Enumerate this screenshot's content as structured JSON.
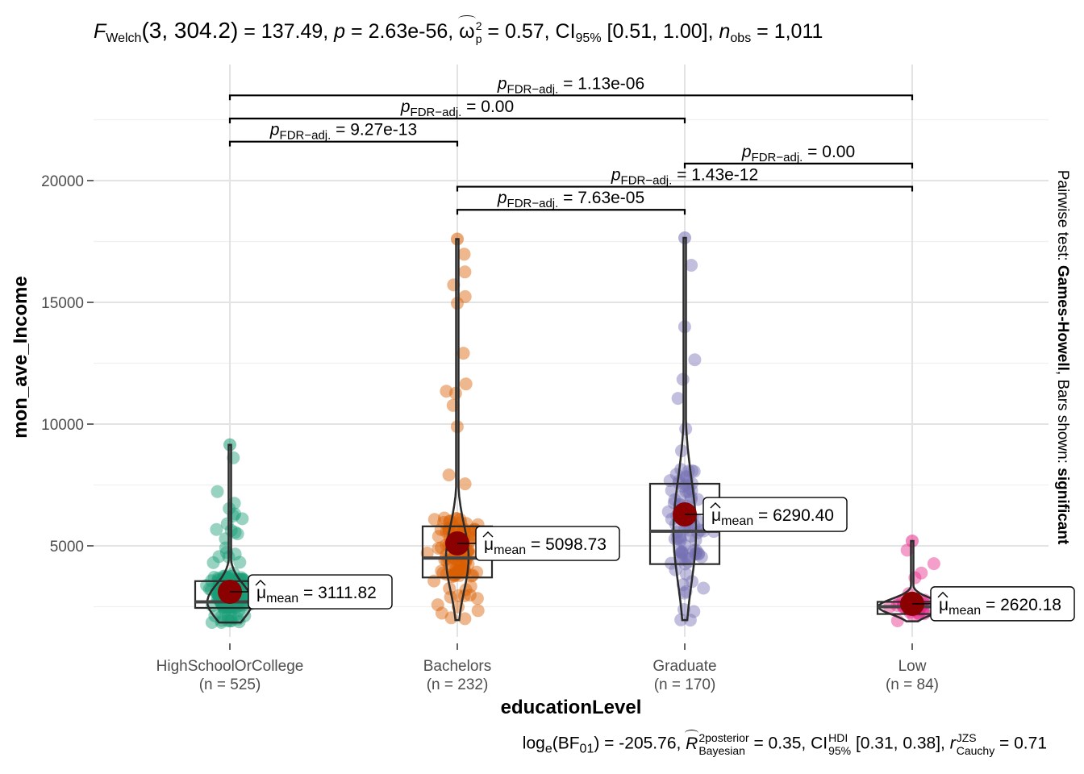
{
  "subtitle": {
    "stat_symbol": "F",
    "stat_sub": "Welch",
    "df": "(3, 304.2)",
    "stat_value": " = 137.49, ",
    "p_symbol": "p",
    "p_value": " = 2.63e-56, ",
    "effect_symbol": "ω",
    "effect_sup": "2",
    "effect_sub": "p",
    "effect_value": " = 0.57, CI",
    "ci_sub": "95%",
    "ci_value": " [0.51, 1.00], ",
    "n_symbol": "n",
    "n_sub": "obs",
    "n_value": " = 1,011"
  },
  "caption": {
    "log_text": "log",
    "log_sub": "e",
    "bf_open": "(BF",
    "bf_sub": "01",
    "bf_value": ") = -205.76, ",
    "r_symbol": "R",
    "r_sup": "2",
    "r_stack_top": "posterior",
    "r_stack_bottom": "Bayesian",
    "r_value": " = 0.35, CI",
    "hdi_top": "HDI",
    "hdi_bottom": "95%",
    "hdi_value": " [0.31, 0.38], ",
    "rc_symbol": "r",
    "rc_top": "JZS",
    "rc_bottom": "Cauchy",
    "rc_value": " = 0.71"
  },
  "chart_data": {
    "type": "violin-box-scatter",
    "xlabel": "educationLevel",
    "ylabel": "mon_ave_Income",
    "ylim": [
      0,
      22800
    ],
    "yticks": [
      5000,
      10000,
      15000,
      20000
    ],
    "grid": true,
    "right_label_parts": [
      "Pairwise test: ",
      "Games-Howell",
      ", Bars shown: ",
      "significant"
    ],
    "groups": [
      {
        "name": "HighSchoolOrCollege",
        "n_label": "(n = 525)",
        "color": "#1B9E77",
        "mean": 3111.82,
        "mean_label": "3111.82",
        "min": 1850,
        "q1": 2450,
        "median": 2700,
        "q3": 3550,
        "max": 9150
      },
      {
        "name": "Bachelors",
        "n_label": "(n = 232)",
        "color": "#D95F02",
        "mean": 5098.73,
        "mean_label": "5098.73",
        "min": 1950,
        "q1": 3700,
        "median": 4500,
        "q3": 5800,
        "max": 17600
      },
      {
        "name": "Graduate",
        "n_label": "(n = 170)",
        "color": "#7570B3",
        "mean": 6290.4,
        "mean_label": "6290.40",
        "min": 1950,
        "q1": 4250,
        "median": 5600,
        "q3": 7550,
        "max": 17650
      },
      {
        "name": "Low",
        "n_label": "(n = 84)",
        "color": "#E7298A",
        "mean": 2620.18,
        "mean_label": "2620.18",
        "min": 1900,
        "q1": 2200,
        "median": 2500,
        "q3": 2700,
        "max": 5200
      }
    ],
    "mean_symbol": "μ",
    "mean_sub": "mean",
    "mean_eq": " = ",
    "pairwise_prefix": "p",
    "pairwise_sub": "FDR−adj.",
    "comparisons": [
      {
        "from": 0,
        "to": 3,
        "y": 23500,
        "label": " = 1.13e-06"
      },
      {
        "from": 0,
        "to": 2,
        "y": 22550,
        "label": " = 0.00"
      },
      {
        "from": 0,
        "to": 1,
        "y": 21600,
        "label": " = 9.27e-13"
      },
      {
        "from": 2,
        "to": 3,
        "y": 20700,
        "label": " = 0.00"
      },
      {
        "from": 1,
        "to": 3,
        "y": 19750,
        "label": " = 1.43e-12"
      },
      {
        "from": 1,
        "to": 2,
        "y": 18800,
        "label": " = 7.63e-05"
      }
    ]
  }
}
